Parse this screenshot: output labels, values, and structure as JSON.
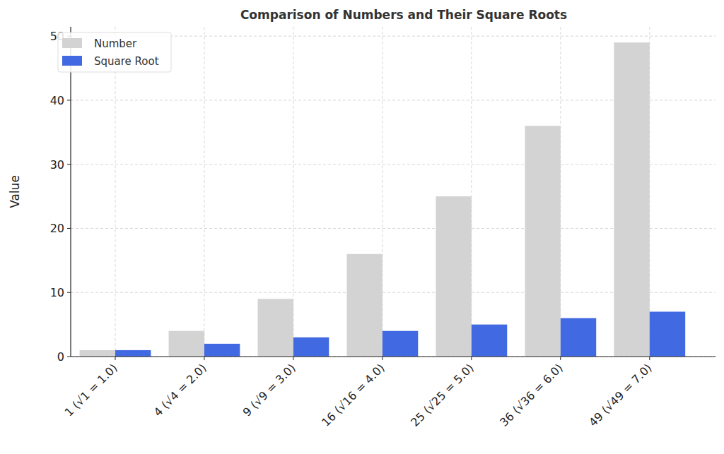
{
  "chart_data": {
    "type": "bar",
    "title": "Comparison of Numbers and Their Square Roots",
    "y_label": "Value",
    "categories": [
      "1 (√1 = 1.0)",
      "4 (√4 = 2.0)",
      "9 (√9 = 3.0)",
      "16 (√16 = 4.0)",
      "25 (√25 = 5.0)",
      "36 (√36 = 6.0)",
      "49 (√49 = 7.0)"
    ],
    "series": [
      {
        "name": "Number",
        "color": "#d3d3d3",
        "values": [
          1,
          4,
          9,
          16,
          25,
          36,
          49
        ]
      },
      {
        "name": "Square Root",
        "color": "#4169e1",
        "values": [
          1,
          2,
          3,
          4,
          5,
          6,
          7
        ]
      }
    ],
    "ylim": [
      0,
      51.45
    ],
    "yticks": [
      0,
      10,
      20,
      30,
      40,
      50
    ],
    "grid": true,
    "legend": "upper left"
  }
}
